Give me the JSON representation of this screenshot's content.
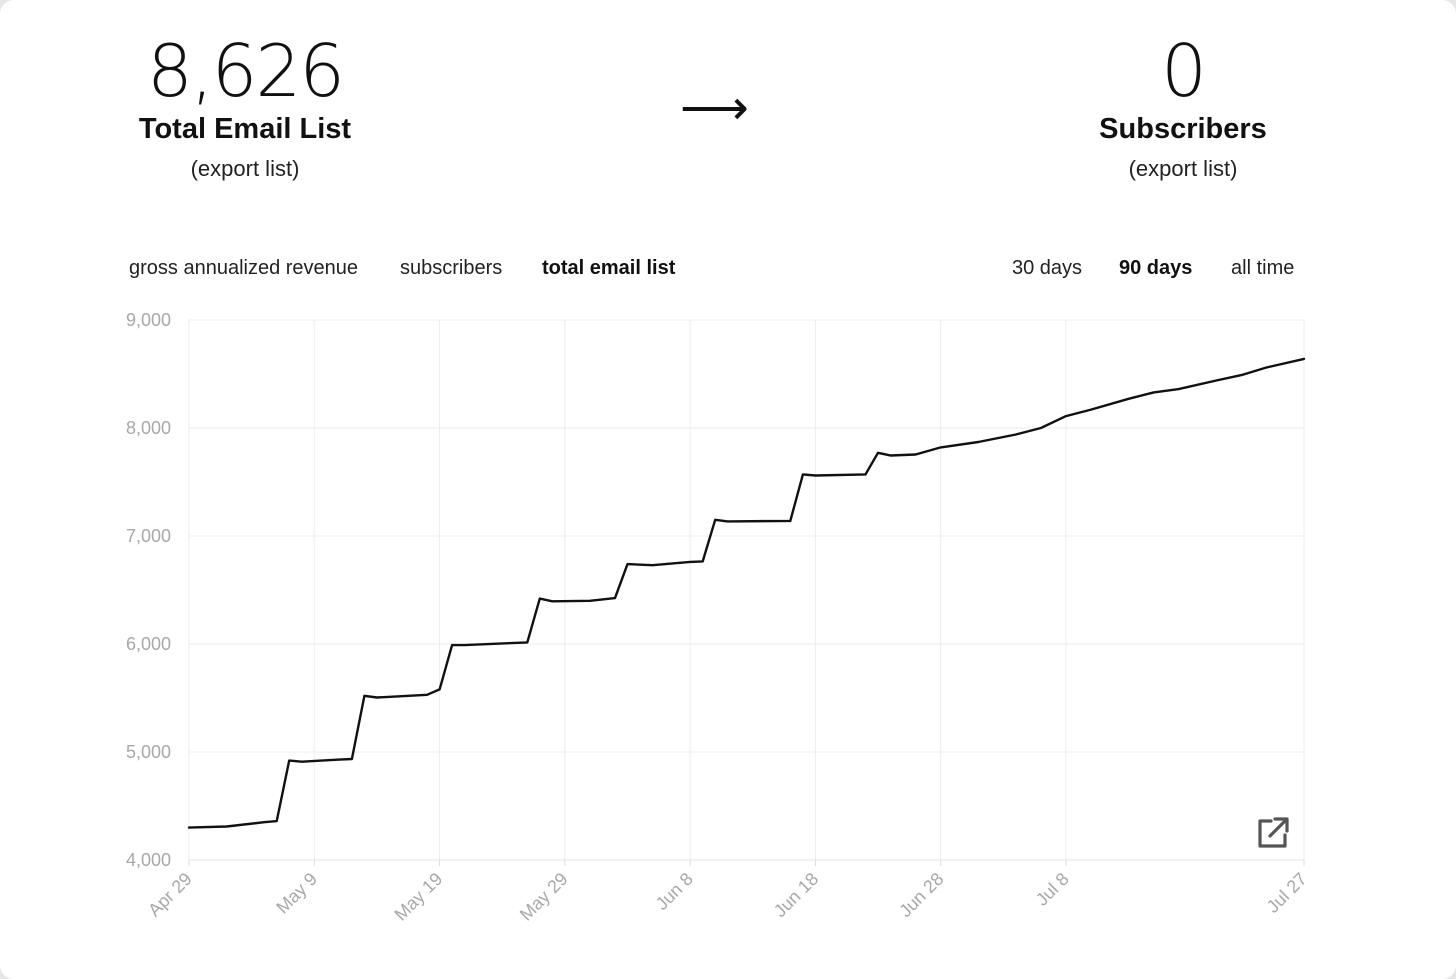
{
  "stats": {
    "total": {
      "value": "8,626",
      "label": "Total Email List",
      "link": "(export list)"
    },
    "arrow": "⟶",
    "subscribers": {
      "value": "0",
      "label": "Subscribers",
      "link": "(export list)"
    }
  },
  "metric_tabs": [
    {
      "label": "gross annualized revenue",
      "active": false
    },
    {
      "label": "subscribers",
      "active": false
    },
    {
      "label": "total email list",
      "active": true
    }
  ],
  "range_tabs": [
    {
      "label": "30 days",
      "active": false
    },
    {
      "label": "90 days",
      "active": true
    },
    {
      "label": "all time",
      "active": false
    }
  ],
  "chart_data": {
    "type": "line",
    "title": "",
    "xlabel": "",
    "ylabel": "",
    "x_ticks": [
      "Apr 29",
      "May 9",
      "May 19",
      "May 29",
      "Jun 8",
      "Jun 18",
      "Jun 28",
      "Jul 8",
      "Jul 27"
    ],
    "y_ticks": [
      "4,000",
      "5,000",
      "6,000",
      "7,000",
      "8,000",
      "9,000"
    ],
    "ylim": [
      4000,
      9000
    ],
    "xlim": [
      "2023-04-29",
      "2023-07-27"
    ],
    "grid": true,
    "line_color": "#111111",
    "series": [
      {
        "points": [
          [
            "2023-04-29",
            4300
          ],
          [
            "2023-05-02",
            4310
          ],
          [
            "2023-05-05",
            4350
          ],
          [
            "2023-05-06",
            4360
          ],
          [
            "2023-05-07",
            4920
          ],
          [
            "2023-05-08",
            4910
          ],
          [
            "2023-05-11",
            4930
          ],
          [
            "2023-05-12",
            4935
          ],
          [
            "2023-05-13",
            5520
          ],
          [
            "2023-05-14",
            5505
          ],
          [
            "2023-05-18",
            5530
          ],
          [
            "2023-05-19",
            5580
          ],
          [
            "2023-05-20",
            5990
          ],
          [
            "2023-05-21",
            5990
          ],
          [
            "2023-05-25",
            6010
          ],
          [
            "2023-05-26",
            6015
          ],
          [
            "2023-05-27",
            6420
          ],
          [
            "2023-05-28",
            6395
          ],
          [
            "2023-05-31",
            6400
          ],
          [
            "2023-06-02",
            6425
          ],
          [
            "2023-06-03",
            6740
          ],
          [
            "2023-06-05",
            6730
          ],
          [
            "2023-06-08",
            6760
          ],
          [
            "2023-06-09",
            6765
          ],
          [
            "2023-06-10",
            7150
          ],
          [
            "2023-06-11",
            7135
          ],
          [
            "2023-06-16",
            7140
          ],
          [
            "2023-06-17",
            7570
          ],
          [
            "2023-06-18",
            7560
          ],
          [
            "2023-06-22",
            7570
          ],
          [
            "2023-06-23",
            7770
          ],
          [
            "2023-06-24",
            7745
          ],
          [
            "2023-06-26",
            7755
          ],
          [
            "2023-06-28",
            7820
          ],
          [
            "2023-07-01",
            7870
          ],
          [
            "2023-07-04",
            7940
          ],
          [
            "2023-07-06",
            8000
          ],
          [
            "2023-07-08",
            8110
          ],
          [
            "2023-07-10",
            8170
          ],
          [
            "2023-07-13",
            8270
          ],
          [
            "2023-07-15",
            8330
          ],
          [
            "2023-07-17",
            8360
          ],
          [
            "2023-07-20",
            8440
          ],
          [
            "2023-07-22",
            8490
          ],
          [
            "2023-07-24",
            8560
          ],
          [
            "2023-07-27",
            8640
          ]
        ]
      }
    ]
  },
  "icons": {
    "export": "external-link-icon"
  }
}
